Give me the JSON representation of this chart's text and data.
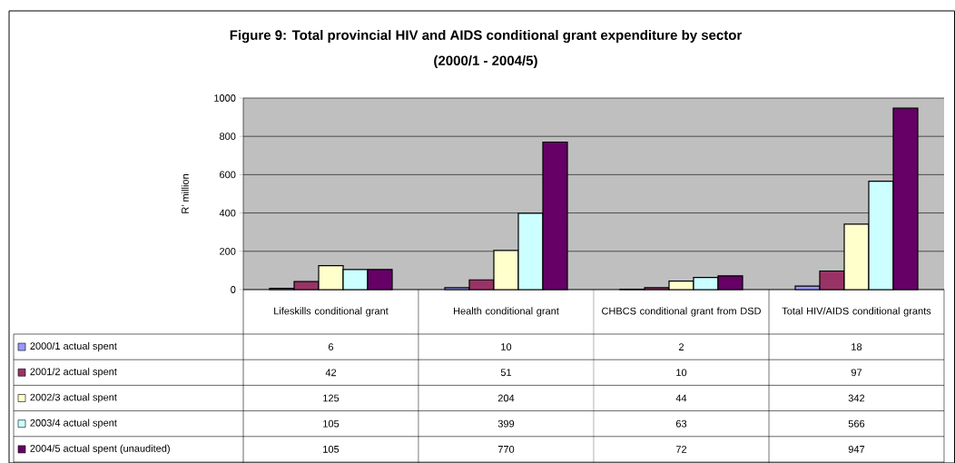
{
  "chart_data": {
    "type": "bar",
    "title": "Figure 9: Total provincial HIV and AIDS conditional grant expenditure by sector",
    "subtitle": "(2000/1 - 2004/5)",
    "ylabel": "R' million",
    "categories": [
      "Lifeskills conditional grant",
      "Health conditional grant",
      "CHBCS conditional grant from DSD",
      "Total HIV/AIDS conditional grants"
    ],
    "series": [
      {
        "name": "2000/1 actual spent",
        "color": "#9999ff",
        "values": [
          6,
          10,
          2,
          18
        ]
      },
      {
        "name": "2001/2 actual spent",
        "color": "#993366",
        "values": [
          42,
          51,
          10,
          97
        ]
      },
      {
        "name": "2002/3 actual spent",
        "color": "#ffffcc",
        "values": [
          125,
          204,
          44,
          342
        ]
      },
      {
        "name": "2003/4 actual spent",
        "color": "#ccffff",
        "values": [
          105,
          399,
          63,
          566
        ]
      },
      {
        "name": "2004/5 actual spent (unaudited)",
        "color": "#660066",
        "values": [
          105,
          770,
          72,
          947
        ]
      }
    ],
    "ylim": [
      0,
      1000
    ],
    "yticks": [
      0,
      200,
      400,
      600,
      800,
      1000
    ],
    "grid": "y",
    "legend": "bottom left",
    "data_labels": true
  }
}
